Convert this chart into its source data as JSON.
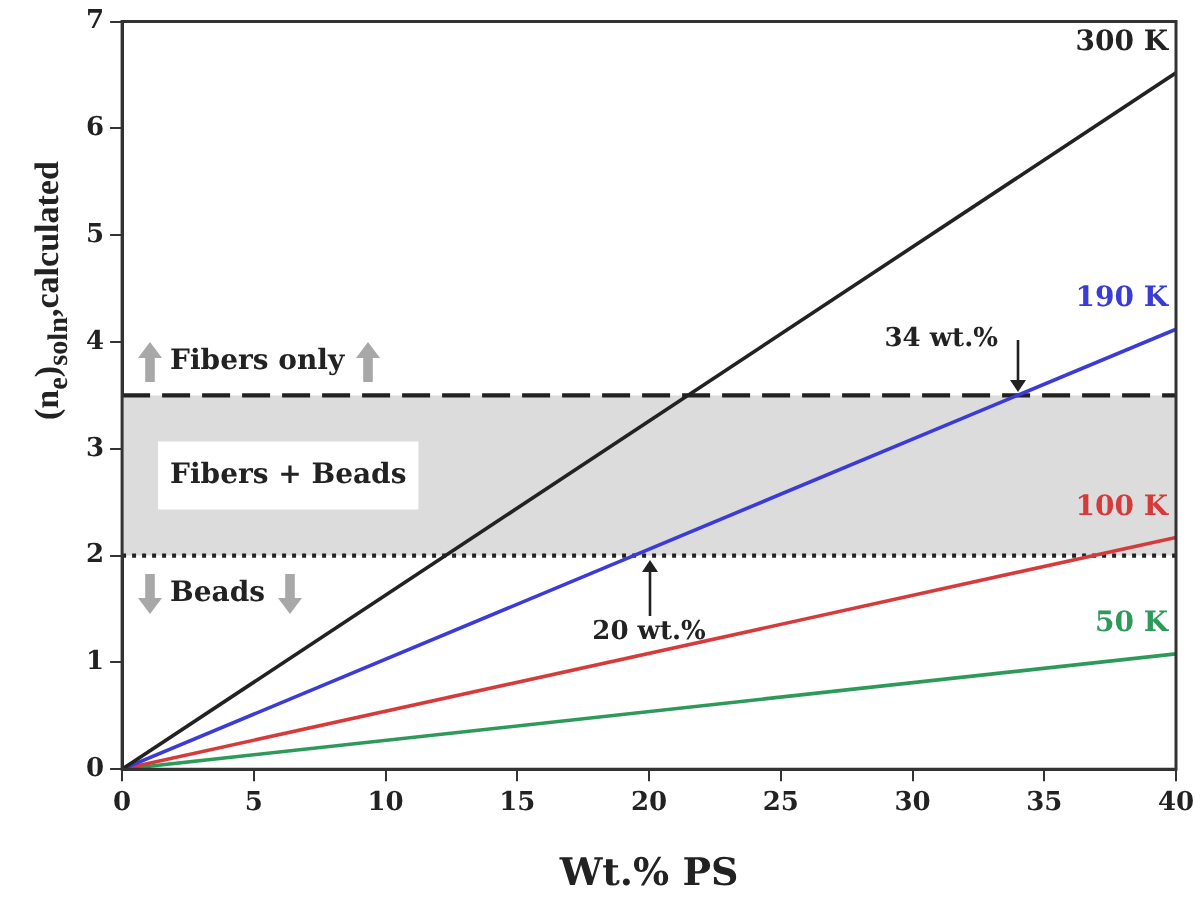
{
  "chart_data": {
    "type": "line",
    "xlabel": "Wt.% PS",
    "ylabel": "(n$_{e}$)$_{soln}$,calculated",
    "x": [
      0,
      40
    ],
    "series": [
      {
        "name": "300 K",
        "color": "#222222",
        "values": [
          0,
          6.52
        ]
      },
      {
        "name": "190 K",
        "color": "#3b3bd6",
        "values": [
          0,
          4.12
        ]
      },
      {
        "name": "100 K",
        "color": "#d63b3b",
        "values": [
          0,
          2.17
        ]
      },
      {
        "name": "50 K",
        "color": "#2e9a5a",
        "values": [
          0,
          1.08
        ]
      }
    ],
    "xlim": [
      0,
      40
    ],
    "xticks": [
      0,
      5,
      10,
      15,
      20,
      25,
      30,
      35,
      40
    ],
    "ylim": [
      0,
      7
    ],
    "yticks": [
      0,
      1,
      2,
      3,
      4,
      5,
      6,
      7
    ],
    "grid": false,
    "legend": false,
    "marker": "none",
    "line_style": "solid",
    "ref_lines": [
      {
        "axis": "y",
        "value": 3.5,
        "label": "Fibers only",
        "line_style": "dashed",
        "color": "#222222"
      },
      {
        "axis": "y",
        "value": 2,
        "label": "Beads",
        "line_style": "dotted",
        "color": "#222222"
      }
    ],
    "bands": [
      {
        "axis": "y",
        "from": 2,
        "to": 3.5,
        "label": "Fibers + Beads",
        "color": "#dcdcdc"
      }
    ],
    "annotations": [
      {
        "text": "34 wt.%",
        "x": 34,
        "y": 3.5
      },
      {
        "text": "20 wt.%",
        "x": 20,
        "y": 2
      }
    ]
  }
}
